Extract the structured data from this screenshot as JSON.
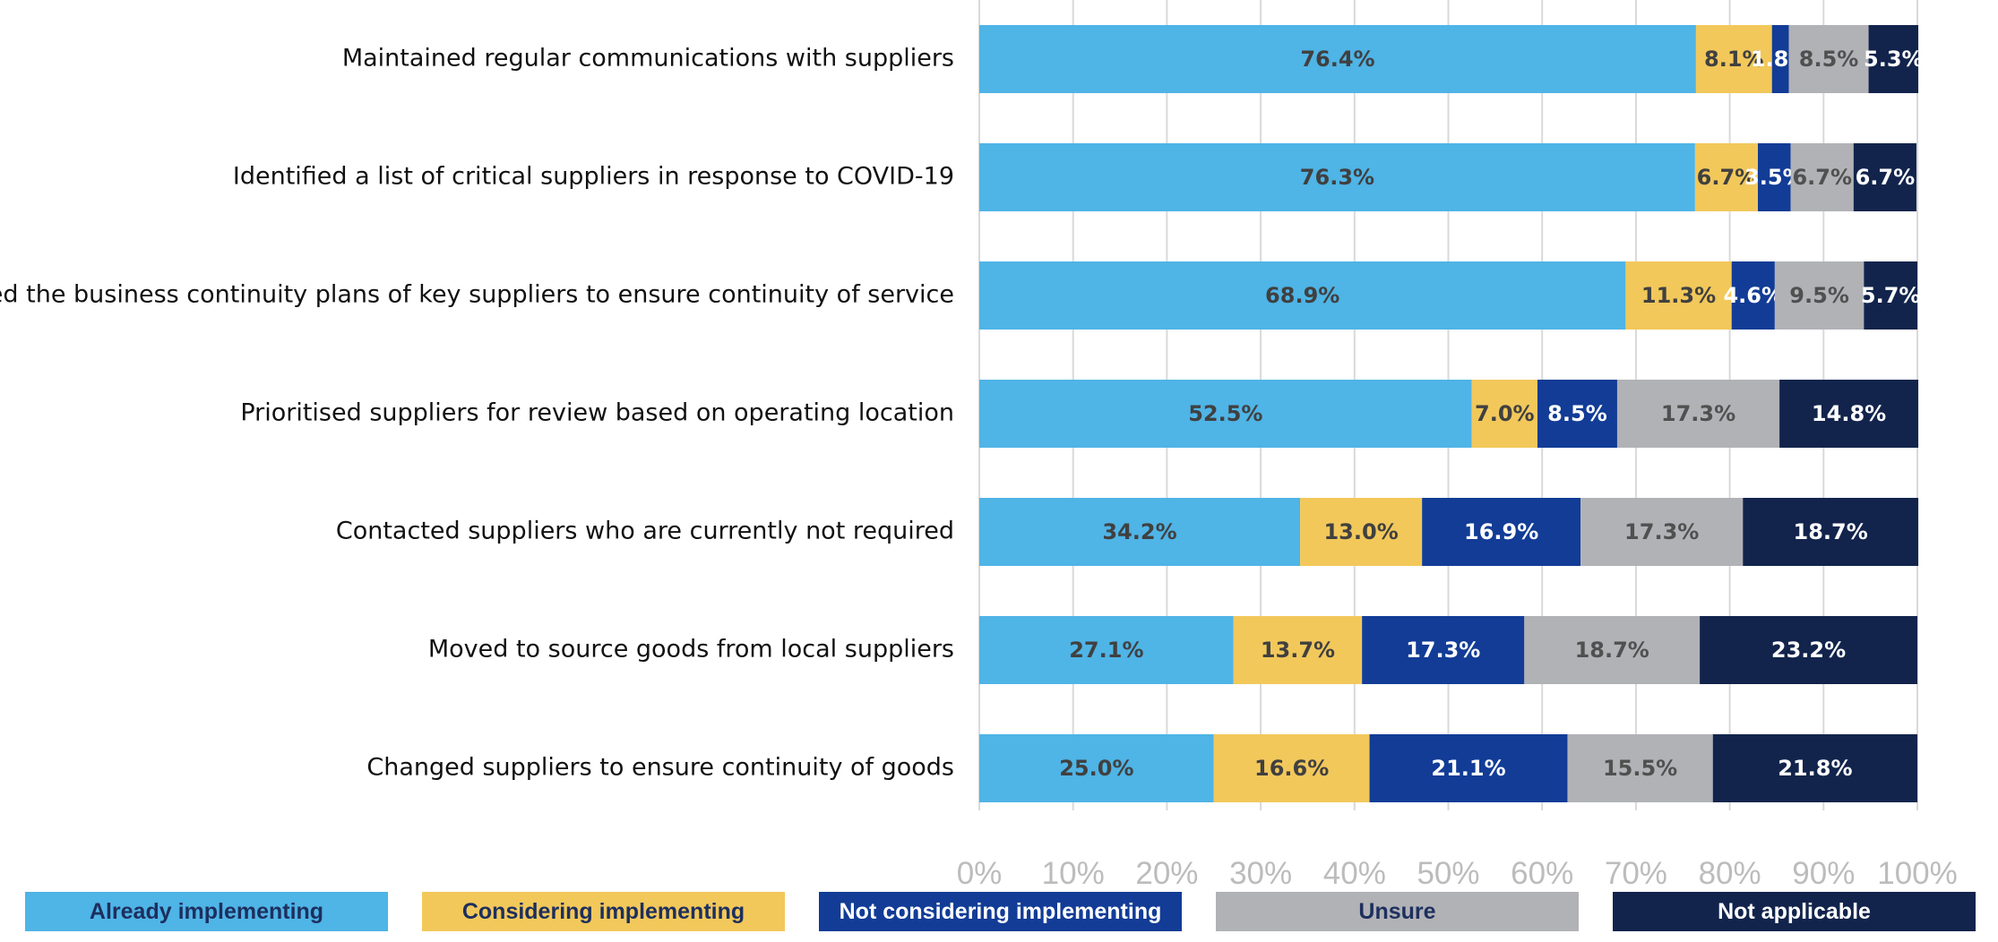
{
  "chart_data": {
    "type": "bar",
    "orientation": "horizontal",
    "stacked": true,
    "categories": [
      "Maintained regular communications with suppliers",
      "Identified a list of critical suppliers in response to COVID-19",
      "Reviewed the business continuity plans of key suppliers to ensure continuity of service",
      "Prioritised suppliers for review based on operating location",
      "Contacted suppliers who are currently not required",
      "Moved to source goods from local suppliers",
      "Changed suppliers to ensure continuity of goods"
    ],
    "series": [
      {
        "name": "Already implementing",
        "color": "#4FB4E6",
        "label_color": "#404040",
        "values": [
          76.4,
          76.3,
          68.9,
          52.5,
          34.2,
          27.1,
          25.0
        ],
        "labels": [
          "76.4%",
          "76.3%",
          "68.9%",
          "52.5%",
          "34.2%",
          "27.1%",
          "25.0%"
        ]
      },
      {
        "name": "Considering implementing",
        "color": "#F2C85B",
        "label_color": "#404040",
        "values": [
          8.1,
          6.7,
          11.3,
          7.0,
          13.0,
          13.7,
          16.6
        ],
        "labels": [
          "8.1%",
          "6.7%",
          "11.3%",
          "7.0%",
          "13.0%",
          "13.7%",
          "16.6%"
        ]
      },
      {
        "name": "Not considering implementing",
        "color": "#123C96",
        "label_color": "#ffffff",
        "values": [
          1.8,
          3.5,
          4.6,
          8.5,
          16.9,
          17.3,
          21.1
        ],
        "labels": [
          "1.8%",
          "3.5%",
          "4.6%",
          "8.5%",
          "16.9%",
          "17.3%",
          "21.1%"
        ]
      },
      {
        "name": "Unsure",
        "color": "#B1B2B6",
        "label_color": "#505050",
        "values": [
          8.5,
          6.7,
          9.5,
          17.3,
          17.3,
          18.7,
          15.5
        ],
        "labels": [
          "8.5%",
          "6.7%",
          "9.5%",
          "17.3%",
          "17.3%",
          "18.7%",
          "15.5%"
        ]
      },
      {
        "name": "Not applicable",
        "color": "#12244C",
        "label_color": "#ffffff",
        "values": [
          5.3,
          6.7,
          5.7,
          14.8,
          18.7,
          23.2,
          21.8
        ],
        "labels": [
          "5.3%",
          "6.7%",
          "5.7%",
          "14.8%",
          "18.7%",
          "23.2%",
          "21.8%"
        ]
      }
    ],
    "x_ticks": [
      "0%",
      "10%",
      "20%",
      "30%",
      "40%",
      "50%",
      "60%",
      "70%",
      "80%",
      "90%",
      "100%"
    ],
    "xlim": [
      0,
      100
    ],
    "grid": true,
    "legend_position": "bottom"
  }
}
